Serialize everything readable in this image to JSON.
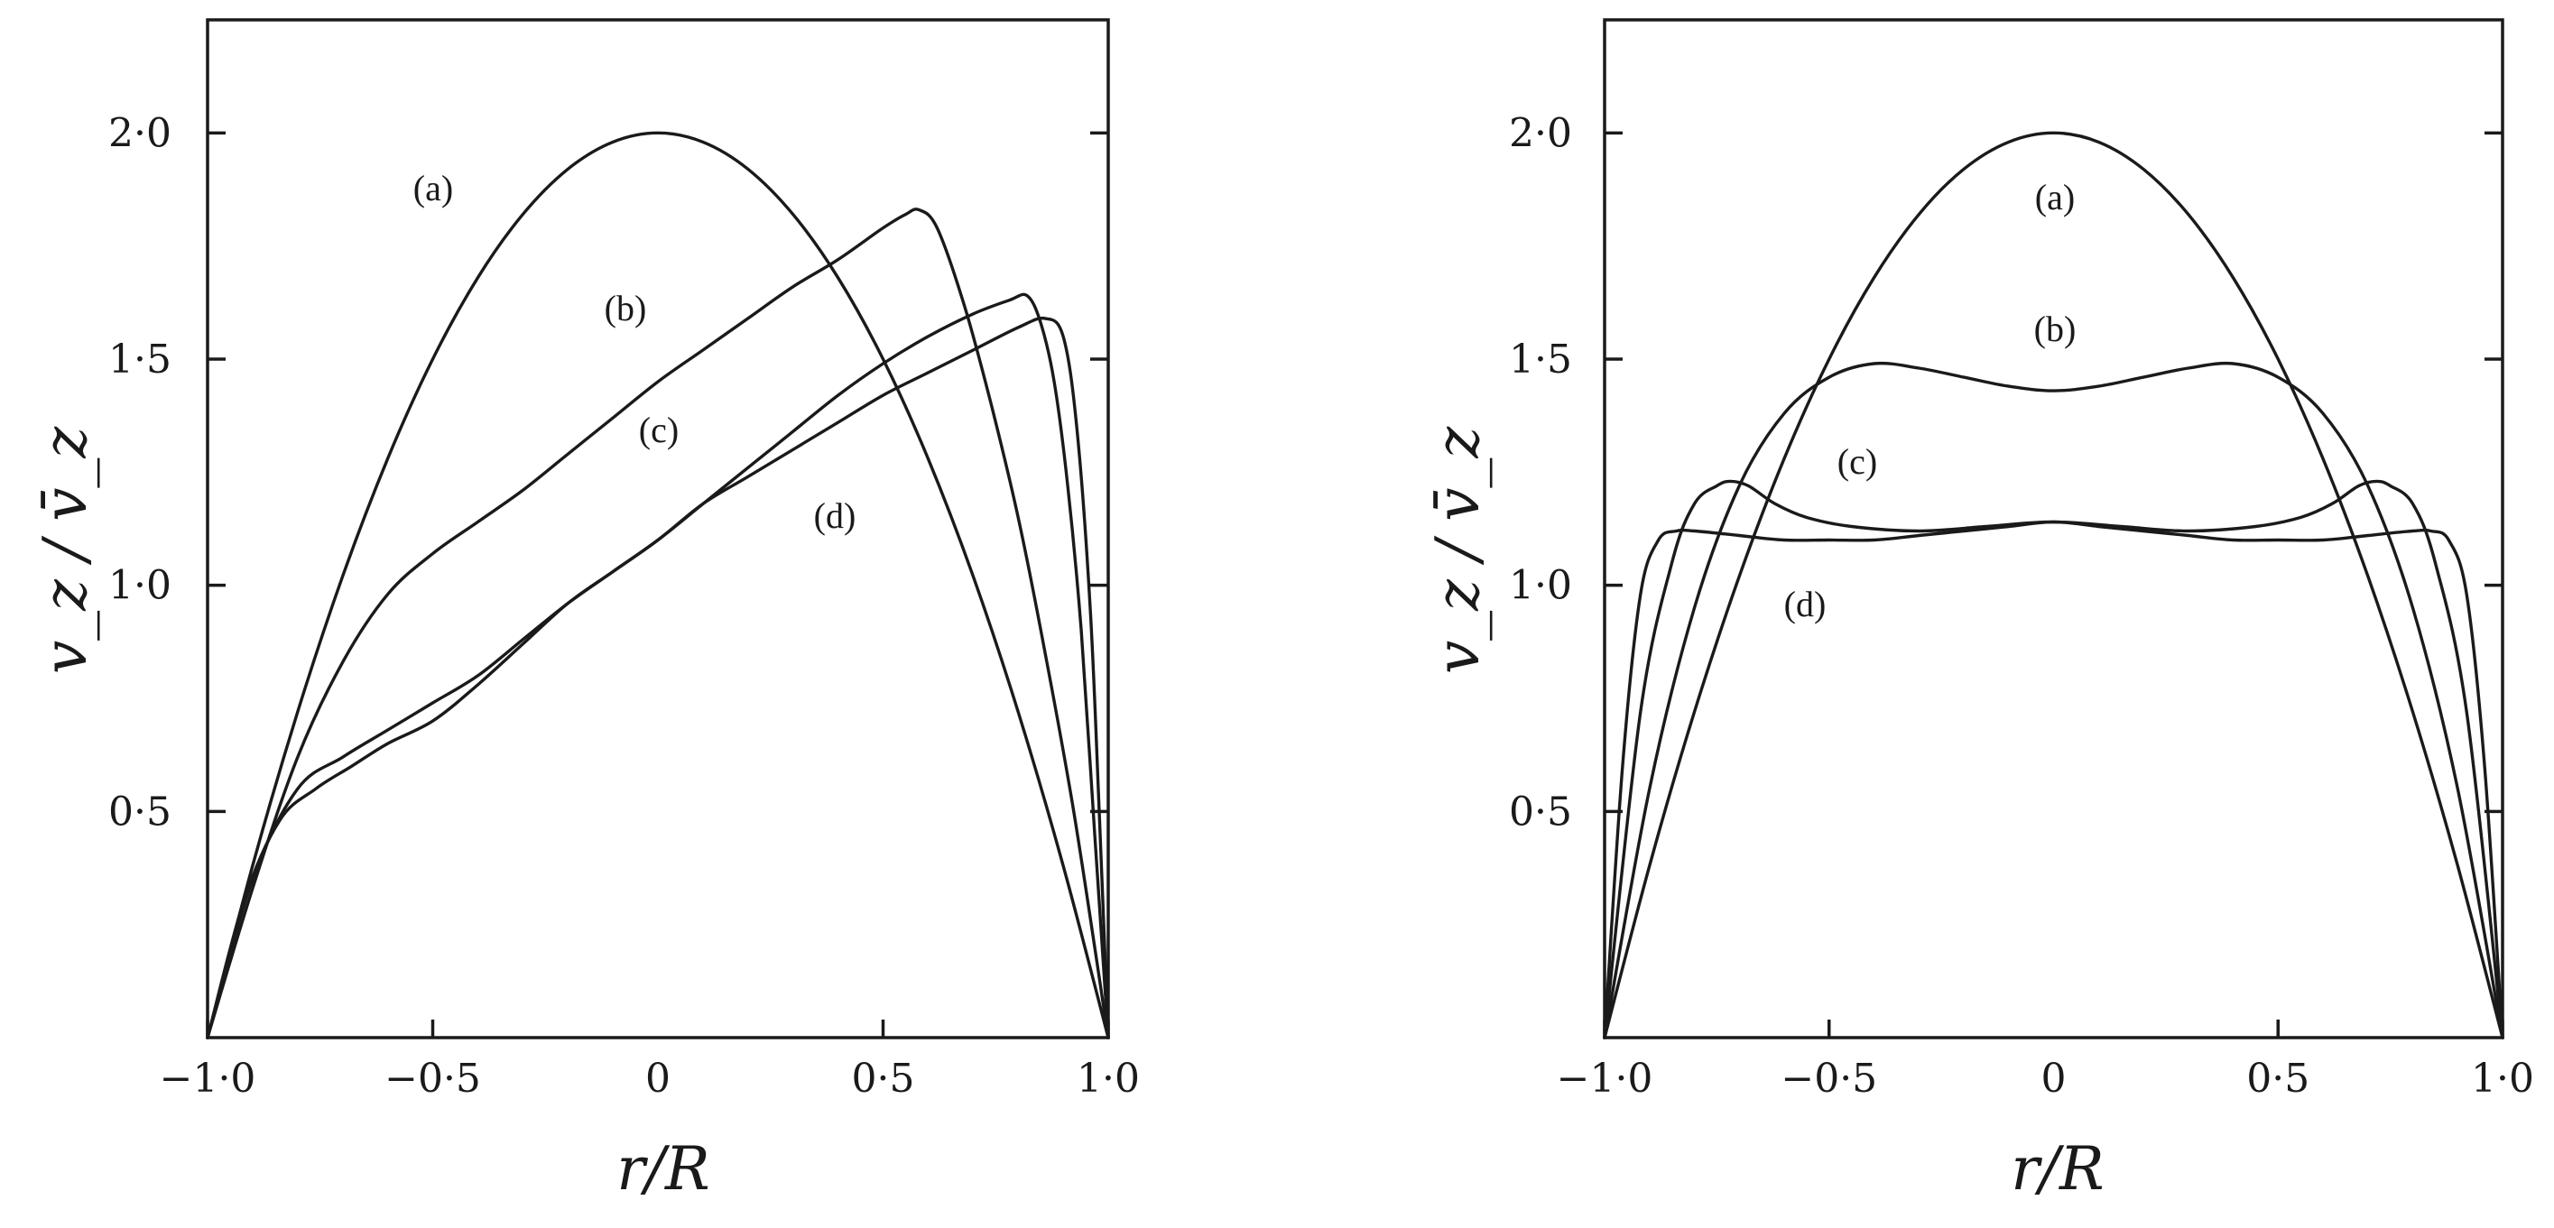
{
  "chart_data": [
    {
      "type": "line",
      "panel": "left",
      "xlabel": "r/R",
      "ylabel": "v_z / v̄_z",
      "xlim": [
        -1.0,
        1.0
      ],
      "ylim": [
        0.0,
        2.25
      ],
      "xticks": [
        {
          "value": -1.0,
          "label": "−1·0"
        },
        {
          "value": -0.5,
          "label": "−0·5"
        },
        {
          "value": 0.5,
          "label": "0·5"
        },
        {
          "value": 1.0,
          "label": "1·0"
        }
      ],
      "yticks": [
        {
          "value": 0.5,
          "label": "0·5"
        },
        {
          "value": 1.0,
          "label": "1·0"
        },
        {
          "value": 1.5,
          "label": "1·5"
        },
        {
          "value": 2.0,
          "label": "2·0"
        }
      ],
      "origin_label": "0",
      "series": [
        {
          "name": "(a)",
          "x": [
            -1.0,
            -0.9,
            -0.8,
            -0.7,
            -0.6,
            -0.5,
            -0.4,
            -0.3,
            -0.2,
            -0.1,
            0.0,
            0.1,
            0.2,
            0.3,
            0.4,
            0.5,
            0.6,
            0.7,
            0.8,
            0.9,
            1.0
          ],
          "y": [
            0.0,
            0.38,
            0.72,
            1.02,
            1.28,
            1.5,
            1.68,
            1.82,
            1.92,
            1.98,
            2.0,
            1.98,
            1.92,
            1.82,
            1.68,
            1.5,
            1.28,
            1.02,
            0.72,
            0.38,
            0.0
          ]
        },
        {
          "name": "(b)",
          "x": [
            -1.0,
            -0.9,
            -0.8,
            -0.7,
            -0.6,
            -0.5,
            -0.4,
            -0.3,
            -0.2,
            -0.1,
            0.0,
            0.1,
            0.2,
            0.3,
            0.4,
            0.5,
            0.55,
            0.58,
            0.62,
            0.68,
            0.74,
            0.8,
            0.86,
            0.92,
            0.97,
            1.0
          ],
          "y": [
            0.0,
            0.33,
            0.62,
            0.83,
            0.98,
            1.07,
            1.14,
            1.21,
            1.29,
            1.37,
            1.45,
            1.52,
            1.59,
            1.66,
            1.72,
            1.79,
            1.82,
            1.83,
            1.79,
            1.62,
            1.4,
            1.15,
            0.85,
            0.52,
            0.2,
            0.0
          ]
        },
        {
          "name": "(c)",
          "x": [
            -1.0,
            -0.9,
            -0.8,
            -0.7,
            -0.6,
            -0.5,
            -0.4,
            -0.3,
            -0.2,
            -0.1,
            0.0,
            0.1,
            0.2,
            0.3,
            0.4,
            0.5,
            0.6,
            0.7,
            0.78,
            0.82,
            0.85,
            0.88,
            0.91,
            0.94,
            0.97,
            1.0
          ],
          "y": [
            0.0,
            0.35,
            0.55,
            0.62,
            0.68,
            0.74,
            0.8,
            0.88,
            0.96,
            1.03,
            1.1,
            1.18,
            1.26,
            1.34,
            1.42,
            1.49,
            1.55,
            1.6,
            1.63,
            1.64,
            1.58,
            1.45,
            1.22,
            0.9,
            0.45,
            0.0
          ]
        },
        {
          "name": "(d)",
          "x": [
            -1.0,
            -0.92,
            -0.84,
            -0.76,
            -0.68,
            -0.6,
            -0.5,
            -0.4,
            -0.3,
            -0.2,
            -0.1,
            0.0,
            0.1,
            0.2,
            0.3,
            0.4,
            0.5,
            0.6,
            0.7,
            0.8,
            0.86,
            0.9,
            0.93,
            0.96,
            0.98,
            1.0
          ],
          "y": [
            0.0,
            0.3,
            0.48,
            0.55,
            0.6,
            0.65,
            0.7,
            0.78,
            0.87,
            0.96,
            1.03,
            1.1,
            1.18,
            1.24,
            1.3,
            1.36,
            1.42,
            1.47,
            1.52,
            1.57,
            1.59,
            1.55,
            1.35,
            0.95,
            0.5,
            0.0
          ]
        }
      ]
    },
    {
      "type": "line",
      "panel": "right",
      "xlabel": "r/R",
      "ylabel": "v_z / v̄_z",
      "xlim": [
        -1.0,
        1.0
      ],
      "ylim": [
        0.0,
        2.25
      ],
      "xticks": [
        {
          "value": -1.0,
          "label": "−1·0"
        },
        {
          "value": -0.5,
          "label": "−0·5"
        },
        {
          "value": 0.5,
          "label": "0·5"
        },
        {
          "value": 1.0,
          "label": "1·0"
        }
      ],
      "yticks": [
        {
          "value": 0.5,
          "label": "0·5"
        },
        {
          "value": 1.0,
          "label": "1·0"
        },
        {
          "value": 1.5,
          "label": "1·5"
        },
        {
          "value": 2.0,
          "label": "2·0"
        }
      ],
      "origin_label": "0",
      "series": [
        {
          "name": "(a)",
          "x": [
            -1.0,
            -0.9,
            -0.8,
            -0.7,
            -0.6,
            -0.5,
            -0.4,
            -0.3,
            -0.2,
            -0.1,
            0.0,
            0.1,
            0.2,
            0.3,
            0.4,
            0.5,
            0.6,
            0.7,
            0.8,
            0.9,
            1.0
          ],
          "y": [
            0.0,
            0.38,
            0.72,
            1.02,
            1.28,
            1.5,
            1.68,
            1.82,
            1.92,
            1.98,
            2.0,
            1.98,
            1.92,
            1.82,
            1.68,
            1.5,
            1.28,
            1.02,
            0.72,
            0.38,
            0.0
          ]
        },
        {
          "name": "(b)",
          "x": [
            -1.0,
            -0.9,
            -0.8,
            -0.7,
            -0.6,
            -0.5,
            -0.4,
            -0.3,
            -0.2,
            -0.1,
            0.0,
            0.1,
            0.2,
            0.3,
            0.4,
            0.5,
            0.6,
            0.7,
            0.8,
            0.9,
            1.0
          ],
          "y": [
            0.0,
            0.55,
            0.95,
            1.22,
            1.38,
            1.46,
            1.49,
            1.48,
            1.46,
            1.44,
            1.43,
            1.44,
            1.46,
            1.48,
            1.49,
            1.46,
            1.38,
            1.22,
            0.95,
            0.55,
            0.0
          ]
        },
        {
          "name": "(c)",
          "x": [
            -1.0,
            -0.92,
            -0.85,
            -0.8,
            -0.75,
            -0.72,
            -0.68,
            -0.62,
            -0.55,
            -0.45,
            -0.3,
            -0.15,
            0.0,
            0.15,
            0.3,
            0.45,
            0.55,
            0.62,
            0.68,
            0.72,
            0.75,
            0.8,
            0.85,
            0.92,
            1.0
          ],
          "y": [
            0.0,
            0.72,
            1.05,
            1.18,
            1.22,
            1.23,
            1.22,
            1.18,
            1.15,
            1.13,
            1.12,
            1.13,
            1.14,
            1.13,
            1.12,
            1.13,
            1.15,
            1.18,
            1.22,
            1.23,
            1.22,
            1.18,
            1.05,
            0.72,
            0.0
          ]
        },
        {
          "name": "(d)",
          "x": [
            -1.0,
            -0.96,
            -0.92,
            -0.88,
            -0.84,
            -0.8,
            -0.7,
            -0.6,
            -0.5,
            -0.4,
            -0.3,
            -0.2,
            -0.1,
            0.0,
            0.1,
            0.2,
            0.3,
            0.4,
            0.5,
            0.6,
            0.7,
            0.8,
            0.84,
            0.88,
            0.92,
            0.96,
            1.0
          ],
          "y": [
            0.0,
            0.6,
            0.98,
            1.1,
            1.12,
            1.12,
            1.11,
            1.1,
            1.1,
            1.1,
            1.11,
            1.12,
            1.13,
            1.14,
            1.13,
            1.12,
            1.11,
            1.1,
            1.1,
            1.1,
            1.11,
            1.12,
            1.12,
            1.1,
            0.98,
            0.6,
            0.0
          ]
        }
      ]
    }
  ]
}
